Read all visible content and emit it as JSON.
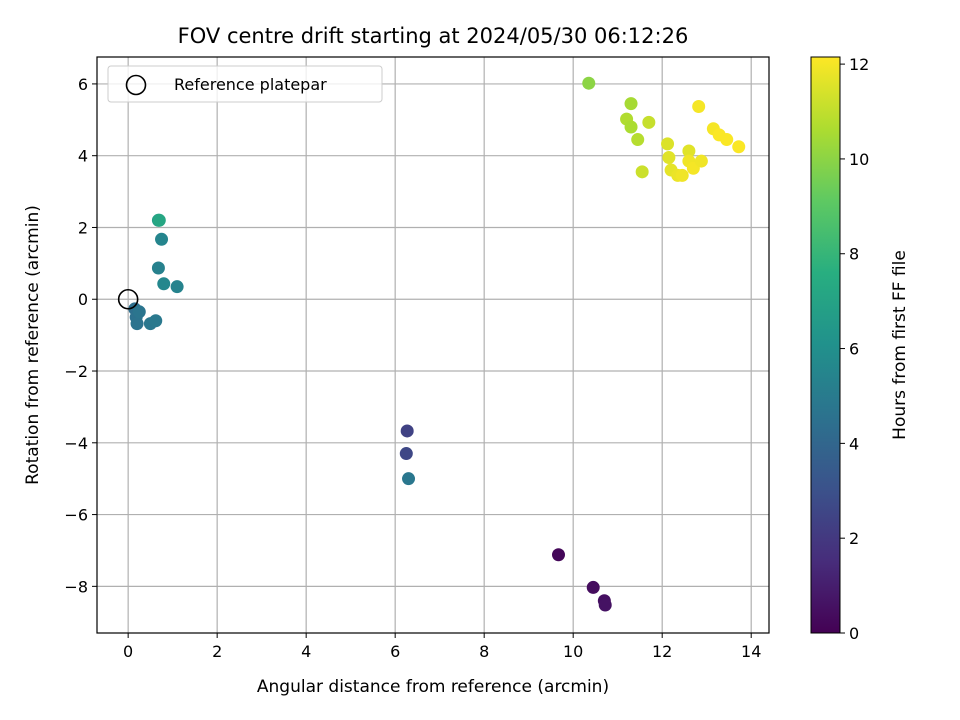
{
  "chart_data": {
    "type": "scatter",
    "title": "FOV centre drift starting at 2024/05/30 06:12:26",
    "xlabel": "Angular distance from reference (arcmin)",
    "ylabel": "Rotation from reference (arcmin)",
    "xlim": [
      -0.7,
      14.4
    ],
    "ylim": [
      -9.3,
      6.75
    ],
    "xticks": [
      0,
      2,
      4,
      6,
      8,
      10,
      12,
      14
    ],
    "xtick_labels": [
      "0",
      "2",
      "4",
      "6",
      "8",
      "10",
      "12",
      "14"
    ],
    "yticks": [
      -8,
      -6,
      -4,
      -2,
      0,
      2,
      4,
      6
    ],
    "ytick_labels": [
      "−8",
      "−6",
      "−4",
      "−2",
      "0",
      "2",
      "4",
      "6"
    ],
    "grid": true,
    "colormap": "viridis",
    "colorbar": {
      "label": "Hours from first FF file",
      "range": [
        0,
        12.15
      ],
      "ticks": [
        0,
        2,
        4,
        6,
        8,
        10,
        12
      ],
      "tick_labels": [
        "0",
        "2",
        "4",
        "6",
        "8",
        "10",
        "12"
      ]
    },
    "legend": {
      "position": "top-left",
      "entries": [
        {
          "label": "Reference platepar",
          "marker": "open-circle",
          "color": "#000000"
        }
      ]
    },
    "reference_point": {
      "x": 0,
      "y": 0
    },
    "points": [
      {
        "x": 9.67,
        "y": -7.12,
        "hours": 0.2
      },
      {
        "x": 10.45,
        "y": -8.03,
        "hours": 0.4
      },
      {
        "x": 10.7,
        "y": -8.4,
        "hours": 0.5
      },
      {
        "x": 10.72,
        "y": -8.52,
        "hours": 0.6
      },
      {
        "x": 6.27,
        "y": -3.67,
        "hours": 2.4
      },
      {
        "x": 6.25,
        "y": -4.3,
        "hours": 2.6
      },
      {
        "x": 6.3,
        "y": -5.0,
        "hours": 4.8
      },
      {
        "x": 0.15,
        "y": -0.27,
        "hours": 4.4
      },
      {
        "x": 0.18,
        "y": -0.5,
        "hours": 4.5
      },
      {
        "x": 0.2,
        "y": -0.68,
        "hours": 4.6
      },
      {
        "x": 0.25,
        "y": -0.35,
        "hours": 4.7
      },
      {
        "x": 0.5,
        "y": -0.68,
        "hours": 4.8
      },
      {
        "x": 0.62,
        "y": -0.6,
        "hours": 4.9
      },
      {
        "x": 0.68,
        "y": 0.87,
        "hours": 5.3
      },
      {
        "x": 0.8,
        "y": 0.43,
        "hours": 5.6
      },
      {
        "x": 1.1,
        "y": 0.35,
        "hours": 5.4
      },
      {
        "x": 0.75,
        "y": 1.67,
        "hours": 5.5
      },
      {
        "x": 0.68,
        "y": 2.2,
        "hours": 6.7
      },
      {
        "x": 0.7,
        "y": 2.2,
        "hours": 7.2
      },
      {
        "x": 10.35,
        "y": 6.02,
        "hours": 10.0
      },
      {
        "x": 11.3,
        "y": 5.45,
        "hours": 10.5
      },
      {
        "x": 11.2,
        "y": 5.02,
        "hours": 10.7
      },
      {
        "x": 11.3,
        "y": 4.8,
        "hours": 10.6
      },
      {
        "x": 11.45,
        "y": 4.45,
        "hours": 10.8
      },
      {
        "x": 11.7,
        "y": 4.93,
        "hours": 11.1
      },
      {
        "x": 11.55,
        "y": 3.55,
        "hours": 11.2
      },
      {
        "x": 12.12,
        "y": 4.33,
        "hours": 11.5
      },
      {
        "x": 12.15,
        "y": 3.95,
        "hours": 11.6
      },
      {
        "x": 12.2,
        "y": 3.6,
        "hours": 11.7
      },
      {
        "x": 12.35,
        "y": 3.45,
        "hours": 11.8
      },
      {
        "x": 12.45,
        "y": 3.45,
        "hours": 11.9
      },
      {
        "x": 12.6,
        "y": 4.13,
        "hours": 11.6
      },
      {
        "x": 12.6,
        "y": 3.85,
        "hours": 11.9
      },
      {
        "x": 12.7,
        "y": 3.65,
        "hours": 12.0
      },
      {
        "x": 12.88,
        "y": 3.85,
        "hours": 11.9
      },
      {
        "x": 12.82,
        "y": 5.37,
        "hours": 12.0
      },
      {
        "x": 13.15,
        "y": 4.75,
        "hours": 12.0
      },
      {
        "x": 13.28,
        "y": 4.58,
        "hours": 12.1
      },
      {
        "x": 13.45,
        "y": 4.45,
        "hours": 12.1
      },
      {
        "x": 13.72,
        "y": 4.25,
        "hours": 12.1
      }
    ]
  }
}
